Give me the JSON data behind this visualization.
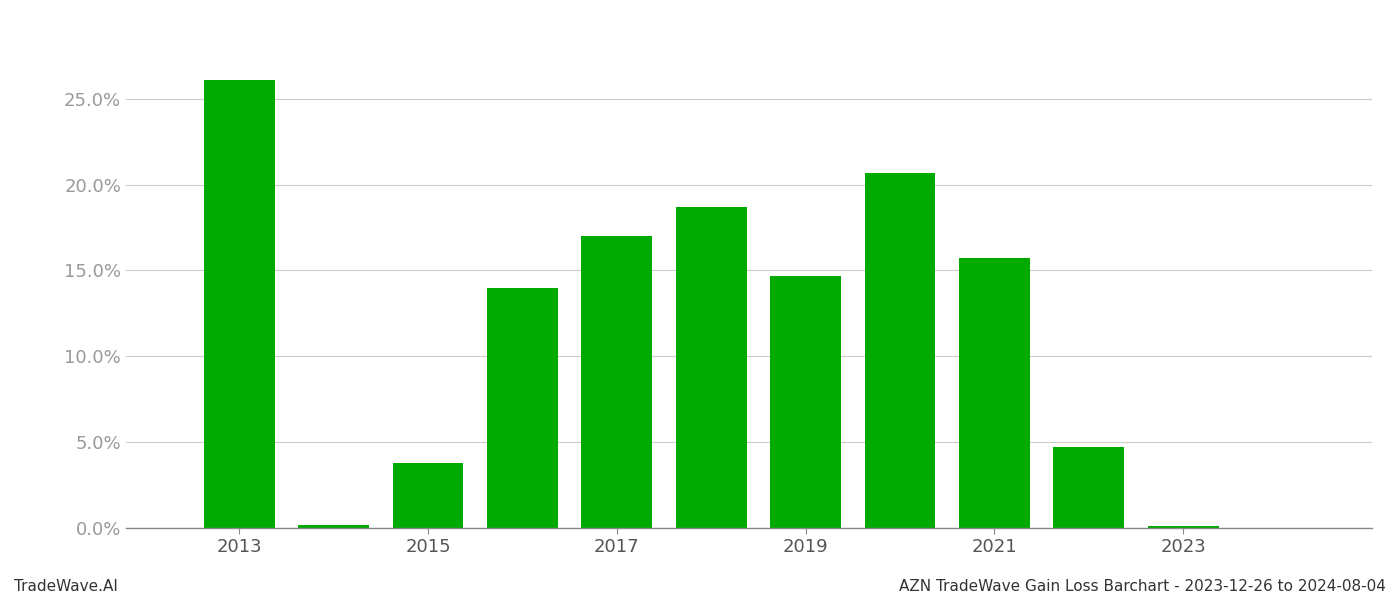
{
  "years": [
    2013,
    2014,
    2015,
    2016,
    2017,
    2018,
    2019,
    2020,
    2021,
    2022,
    2023,
    2024
  ],
  "values": [
    0.261,
    0.002,
    0.038,
    0.14,
    0.17,
    0.187,
    0.147,
    0.207,
    0.157,
    0.047,
    0.001,
    0.0
  ],
  "bar_color": "#00AA00",
  "background_color": "#ffffff",
  "grid_color": "#cccccc",
  "tick_color": "#999999",
  "xlabel_color": "#555555",
  "ylim": [
    0,
    0.29
  ],
  "yticks": [
    0.0,
    0.05,
    0.1,
    0.15,
    0.2,
    0.25
  ],
  "xtick_positions": [
    2013,
    2015,
    2017,
    2019,
    2021,
    2023
  ],
  "xtick_labels": [
    "2013",
    "2015",
    "2017",
    "2019",
    "2021",
    "2023"
  ],
  "footer_left": "TradeWave.AI",
  "footer_right": "AZN TradeWave Gain Loss Barchart - 2023-12-26 to 2024-08-04",
  "footer_fontsize": 11,
  "tick_fontsize": 13,
  "bar_width": 0.75
}
